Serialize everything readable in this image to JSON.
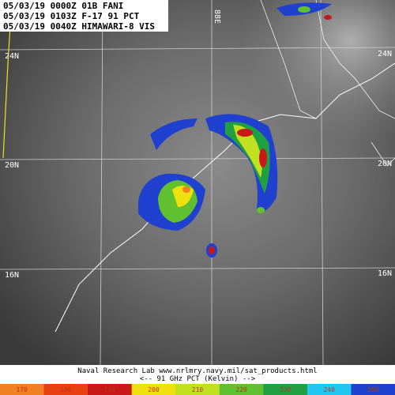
{
  "header": {
    "lines": [
      "05/03/19 0000Z 01B FANI",
      "05/03/19 0103Z F-17 91 PCT",
      "05/03/19 0040Z HIMAWARI-8 VIS"
    ]
  },
  "grid_labels": {
    "lat_left": [
      "24N",
      "20N",
      "16N"
    ],
    "lat_right": [
      "24N",
      "20N",
      "16N"
    ],
    "lon_top": [
      "88E"
    ]
  },
  "footer": {
    "credit": "Naval Research Lab  www.nrlmry.navy.mil/sat_products.html",
    "legend_title": "<--   91 GHz PCT (Kelvin)   -->"
  },
  "colorbar": {
    "ticks": [
      170,
      180,
      190,
      200,
      210,
      220,
      230,
      240,
      250
    ],
    "colors": [
      "#f08020",
      "#e84010",
      "#c81818",
      "#f0e010",
      "#c0e020",
      "#60c030",
      "#20a040",
      "#20c8f0",
      "#2040d0"
    ]
  }
}
